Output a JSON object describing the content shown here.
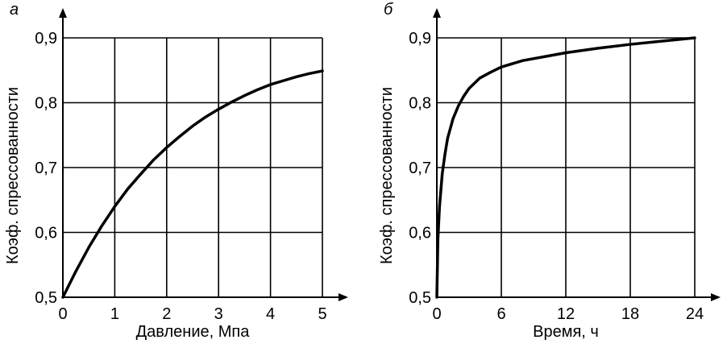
{
  "chart_data": [
    {
      "type": "line",
      "panel": "а",
      "xlabel": "Давление, Мпа",
      "ylabel": "Коэф. спрессованности",
      "xlim": [
        0,
        5
      ],
      "ylim": [
        0.5,
        0.9
      ],
      "x_ticks": [
        0,
        1,
        2,
        3,
        4,
        5
      ],
      "x_tick_labels": [
        "0",
        "1",
        "2",
        "3",
        "4",
        "5"
      ],
      "y_ticks": [
        0.5,
        0.6,
        0.7,
        0.8,
        0.9
      ],
      "y_tick_labels": [
        "0,5",
        "0,6",
        "0,7",
        "0,8",
        "0,9"
      ],
      "grid": true,
      "series": [
        {
          "x": [
            0,
            0.25,
            0.5,
            0.75,
            1,
            1.25,
            1.5,
            1.75,
            2,
            2.25,
            2.5,
            2.75,
            3,
            3.25,
            3.5,
            3.75,
            4,
            4.25,
            4.5,
            4.75,
            5
          ],
          "y": [
            0.5,
            0.54,
            0.577,
            0.61,
            0.64,
            0.667,
            0.69,
            0.712,
            0.731,
            0.748,
            0.764,
            0.778,
            0.79,
            0.801,
            0.811,
            0.82,
            0.828,
            0.834,
            0.84,
            0.845,
            0.849
          ]
        }
      ]
    },
    {
      "type": "line",
      "panel": "б",
      "xlabel": "Время, ч",
      "ylabel": "Коэф. спрессованности",
      "xlim": [
        0,
        24
      ],
      "ylim": [
        0.5,
        0.9
      ],
      "x_ticks": [
        0,
        6,
        12,
        18,
        24
      ],
      "x_tick_labels": [
        "0",
        "6",
        "12",
        "18",
        "24"
      ],
      "y_ticks": [
        0.5,
        0.6,
        0.7,
        0.8,
        0.9
      ],
      "y_tick_labels": [
        "0,5",
        "0,6",
        "0,7",
        "0,8",
        "0,9"
      ],
      "grid": true,
      "series": [
        {
          "x": [
            0,
            0.1,
            0.25,
            0.5,
            0.75,
            1,
            1.5,
            2,
            2.5,
            3,
            4,
            5,
            6,
            8,
            10,
            12,
            15,
            18,
            21,
            24
          ],
          "y": [
            0.5,
            0.59,
            0.64,
            0.69,
            0.72,
            0.745,
            0.775,
            0.795,
            0.81,
            0.822,
            0.838,
            0.847,
            0.855,
            0.865,
            0.871,
            0.877,
            0.884,
            0.89,
            0.895,
            0.9
          ]
        }
      ]
    }
  ]
}
